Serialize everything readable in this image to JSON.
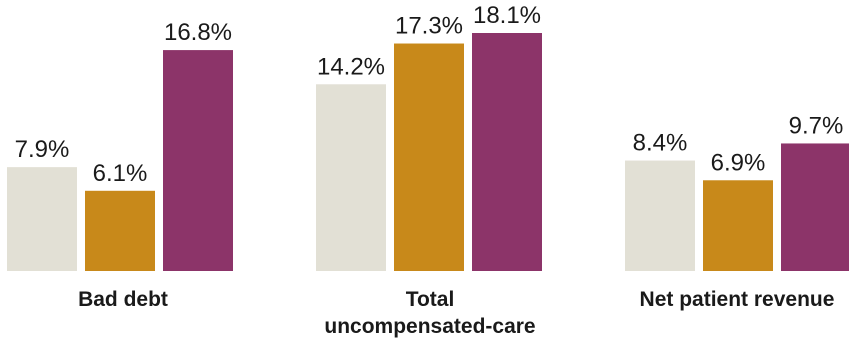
{
  "chart_data": {
    "type": "bar",
    "title": "",
    "xlabel": "",
    "ylabel": "",
    "ylim": [
      0,
      18.1
    ],
    "grid": false,
    "legend": "none",
    "categories": [
      {
        "lines": [
          "Bad debt"
        ]
      },
      {
        "lines": [
          "Total",
          "uncompensated-care"
        ]
      },
      {
        "lines": [
          "Net patient revenue"
        ]
      }
    ],
    "series": [
      {
        "color": "#e2e0d5",
        "values": [
          7.9,
          14.2,
          8.4
        ],
        "labels": [
          "7.9%",
          "14.2%",
          "8.4%"
        ]
      },
      {
        "color": "#c8891a",
        "values": [
          6.1,
          17.3,
          6.9
        ],
        "labels": [
          "6.1%",
          "17.3%",
          "6.9%"
        ]
      },
      {
        "color": "#8c3469",
        "values": [
          16.8,
          18.1,
          9.7
        ],
        "labels": [
          "16.8%",
          "18.1%",
          "9.7%"
        ]
      }
    ]
  }
}
